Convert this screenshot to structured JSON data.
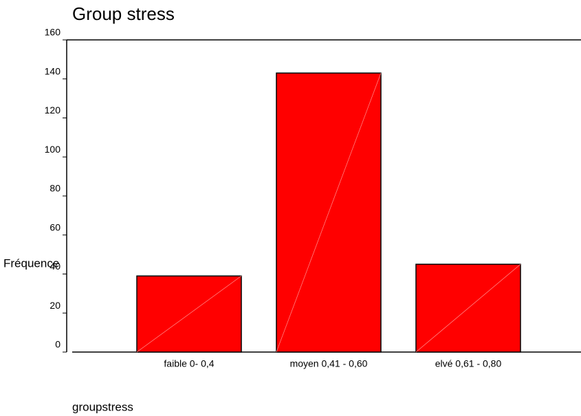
{
  "chart_data": {
    "type": "bar",
    "title": "Group stress",
    "x_label": "groupstress",
    "y_label": "Fréquence",
    "categories": [
      "faible 0- 0,4",
      "moyen 0,41 - 0,60",
      "elvé 0,61 - 0,80"
    ],
    "values": [
      39,
      143,
      45
    ],
    "color": "#ff0000",
    "ylim": [
      0,
      160
    ],
    "yticks": [
      0,
      20,
      40,
      60,
      80,
      100,
      120,
      140,
      160
    ],
    "grid": false
  }
}
